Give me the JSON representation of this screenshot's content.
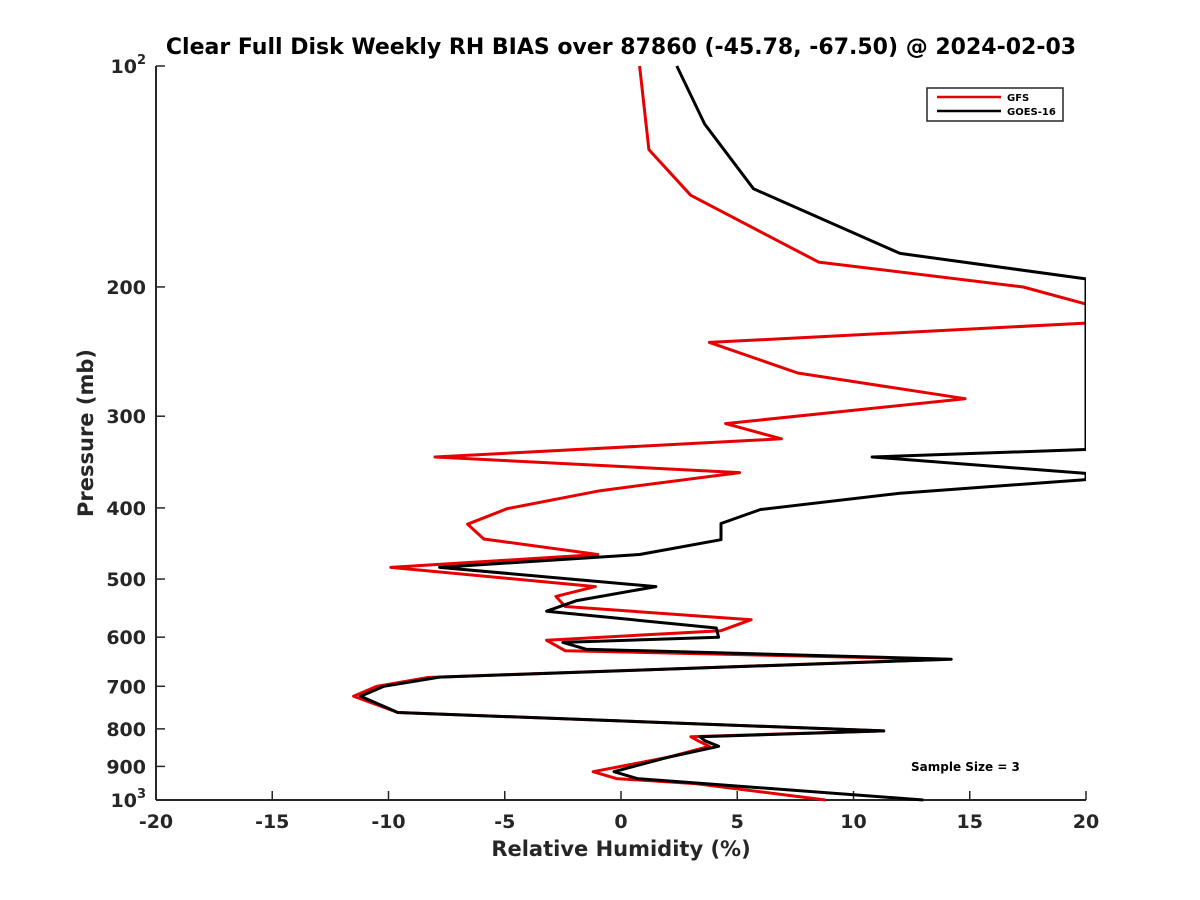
{
  "chart_data": {
    "type": "line",
    "title": "Clear Full Disk Weekly RH BIAS over 87860 (-45.78, -67.50) @ 2024-02-03",
    "xlabel": "Relative Humidity (%)",
    "ylabel": "Pressure (mb)",
    "xlim": [
      -20,
      20
    ],
    "ylim": [
      100,
      1000
    ],
    "y_scale": "log",
    "y_reversed": true,
    "grid": false,
    "legend_position": "top-right",
    "annotation": "Sample Size = 3",
    "x_ticks": [
      "-20",
      "-15",
      "-10",
      "-5",
      "0",
      "5",
      "10",
      "15",
      "20"
    ],
    "y_ticks": [
      {
        "value": 100,
        "label": "10",
        "sup": "2"
      },
      {
        "value": 200,
        "label": "200",
        "sup": ""
      },
      {
        "value": 300,
        "label": "300",
        "sup": ""
      },
      {
        "value": 400,
        "label": "400",
        "sup": ""
      },
      {
        "value": 500,
        "label": "500",
        "sup": ""
      },
      {
        "value": 600,
        "label": "600",
        "sup": ""
      },
      {
        "value": 700,
        "label": "700",
        "sup": ""
      },
      {
        "value": 800,
        "label": "800",
        "sup": ""
      },
      {
        "value": 900,
        "label": "900",
        "sup": ""
      },
      {
        "value": 1000,
        "label": "10",
        "sup": "3"
      }
    ],
    "series": [
      {
        "name": "GFS",
        "color": "#e60000",
        "points": [
          [
            0.8,
            100
          ],
          [
            1.2,
            130
          ],
          [
            3.0,
            150
          ],
          [
            8.5,
            185
          ],
          [
            17.3,
            200
          ],
          [
            20,
            211
          ],
          [
            20,
            224
          ],
          [
            3.8,
            238
          ],
          [
            7.6,
            262
          ],
          [
            14.8,
            284
          ],
          [
            4.5,
            307
          ],
          [
            6.9,
            322
          ],
          [
            -8.0,
            341
          ],
          [
            5.1,
            358
          ],
          [
            -0.9,
            379
          ],
          [
            -4.9,
            401
          ],
          [
            -6.6,
            421
          ],
          [
            -5.9,
            441
          ],
          [
            -1.0,
            463
          ],
          [
            -9.9,
            482
          ],
          [
            -1.1,
            512
          ],
          [
            -2.8,
            528
          ],
          [
            -2.4,
            545
          ],
          [
            5.6,
            568
          ],
          [
            4.3,
            588
          ],
          [
            -3.2,
            606
          ],
          [
            -2.4,
            626
          ],
          [
            14.0,
            643
          ],
          [
            -8.3,
            681
          ],
          [
            -10.5,
            700
          ],
          [
            -11.5,
            722
          ],
          [
            -9.6,
            760
          ],
          [
            11.3,
            805
          ],
          [
            3.0,
            820
          ],
          [
            3.3,
            830
          ],
          [
            3.8,
            845
          ],
          [
            2.0,
            875
          ],
          [
            -1.2,
            915
          ],
          [
            -0.2,
            935
          ],
          [
            3.2,
            950
          ],
          [
            8.8,
            1000
          ]
        ]
      },
      {
        "name": "GOES-16",
        "color": "#000000",
        "points": [
          [
            2.4,
            100
          ],
          [
            3.6,
            120
          ],
          [
            5.7,
            147
          ],
          [
            12.0,
            180
          ],
          [
            20,
            195
          ],
          [
            20,
            333
          ],
          [
            10.8,
            341
          ],
          [
            20,
            359
          ],
          [
            20,
            366
          ],
          [
            12.0,
            382
          ],
          [
            6.0,
            402
          ],
          [
            4.3,
            420
          ],
          [
            4.3,
            442
          ],
          [
            0.8,
            463
          ],
          [
            -7.8,
            482
          ],
          [
            1.5,
            512
          ],
          [
            -1.9,
            535
          ],
          [
            -3.2,
            553
          ],
          [
            4.1,
            583
          ],
          [
            4.2,
            600
          ],
          [
            -2.5,
            610
          ],
          [
            -1.5,
            623
          ],
          [
            14.2,
            643
          ],
          [
            -7.8,
            680
          ],
          [
            -10.2,
            700
          ],
          [
            -11.2,
            722
          ],
          [
            -9.6,
            760
          ],
          [
            11.3,
            805
          ],
          [
            3.4,
            820
          ],
          [
            3.6,
            830
          ],
          [
            4.2,
            845
          ],
          [
            2.0,
            875
          ],
          [
            -0.3,
            915
          ],
          [
            0.7,
            935
          ],
          [
            3.6,
            950
          ],
          [
            13.0,
            1000
          ]
        ]
      }
    ]
  }
}
